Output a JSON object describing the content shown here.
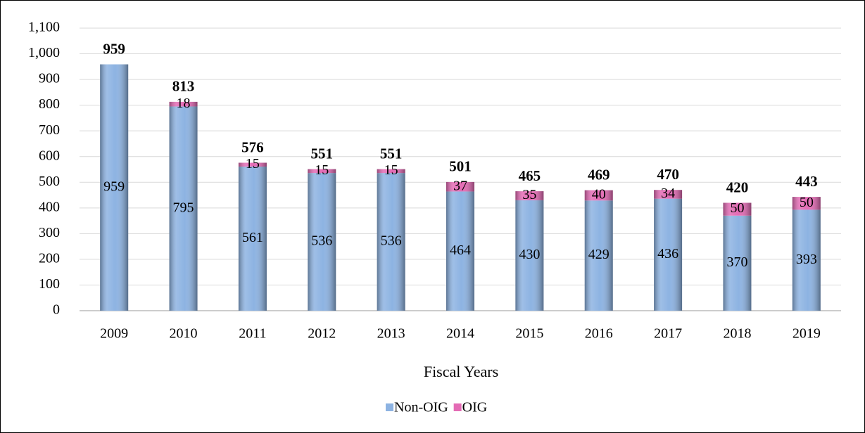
{
  "chart_data": {
    "type": "stacked_bar",
    "categories": [
      "2009",
      "2010",
      "2011",
      "2012",
      "2013",
      "2014",
      "2015",
      "2016",
      "2017",
      "2018",
      "2019"
    ],
    "series": [
      {
        "name": "Non-OIG",
        "color": "#8db3e2",
        "values": [
          959,
          795,
          561,
          536,
          536,
          464,
          430,
          429,
          436,
          370,
          393
        ]
      },
      {
        "name": "OIG",
        "color": "#e46bb5",
        "values": [
          null,
          18,
          15,
          15,
          15,
          37,
          35,
          40,
          34,
          50,
          50
        ]
      }
    ],
    "totals": [
      959,
      813,
      576,
      551,
      551,
      501,
      465,
      469,
      470,
      420,
      443
    ],
    "xlabel": "Fiscal Years",
    "ylim": [
      0,
      1100
    ],
    "yticks": [
      0,
      100,
      200,
      300,
      400,
      500,
      600,
      700,
      800,
      900,
      {
        "value": 1000,
        "label": "1,000"
      },
      {
        "value": 1100,
        "label": "1,100"
      }
    ],
    "grid": true,
    "legend": "bottom"
  }
}
